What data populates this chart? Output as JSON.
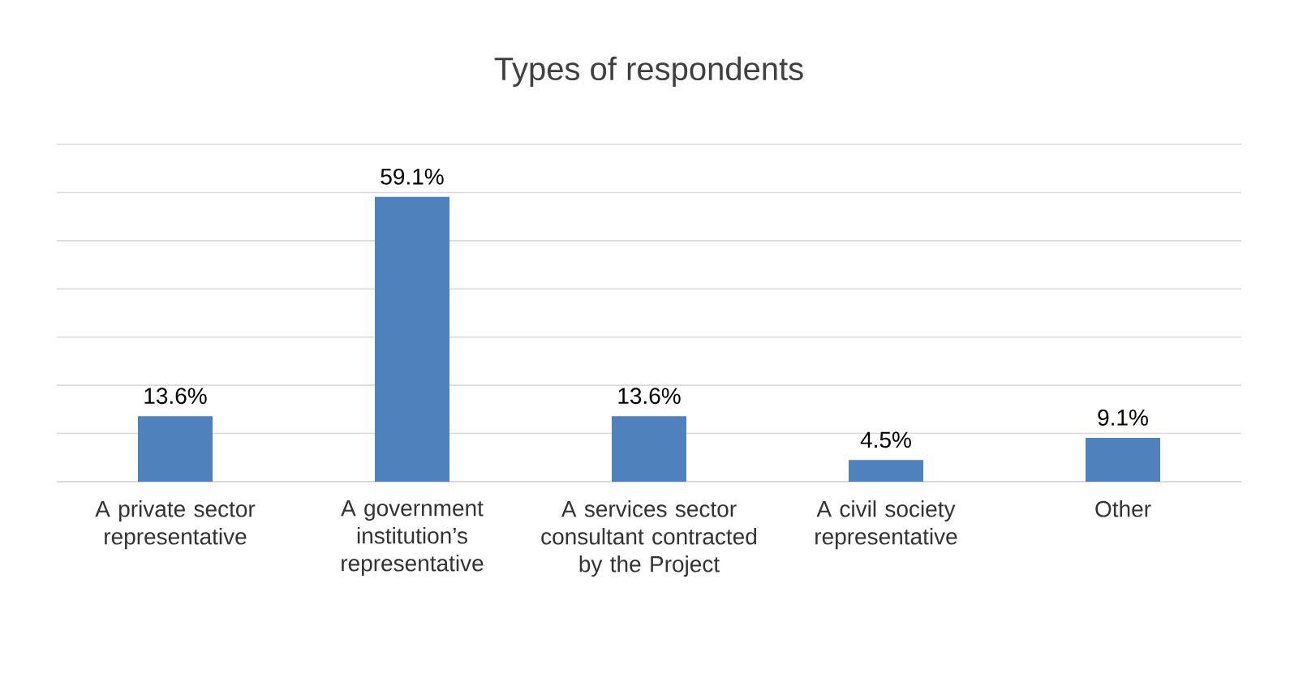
{
  "chart_data": {
    "type": "bar",
    "title": "Types of respondents",
    "categories": [
      "A private sector representative",
      "A government institution’s representative",
      "A services sector consultant contracted by the Project",
      "A civil society representative",
      "Other"
    ],
    "values": [
      13.6,
      59.1,
      13.6,
      4.5,
      9.1
    ],
    "value_labels": [
      "13.6%",
      "59.1%",
      "13.6%",
      "4.5%",
      "9.1%"
    ],
    "color": "#4f81bd",
    "ylim": [
      0,
      70
    ],
    "grid": "y",
    "tick_labels": "x"
  }
}
